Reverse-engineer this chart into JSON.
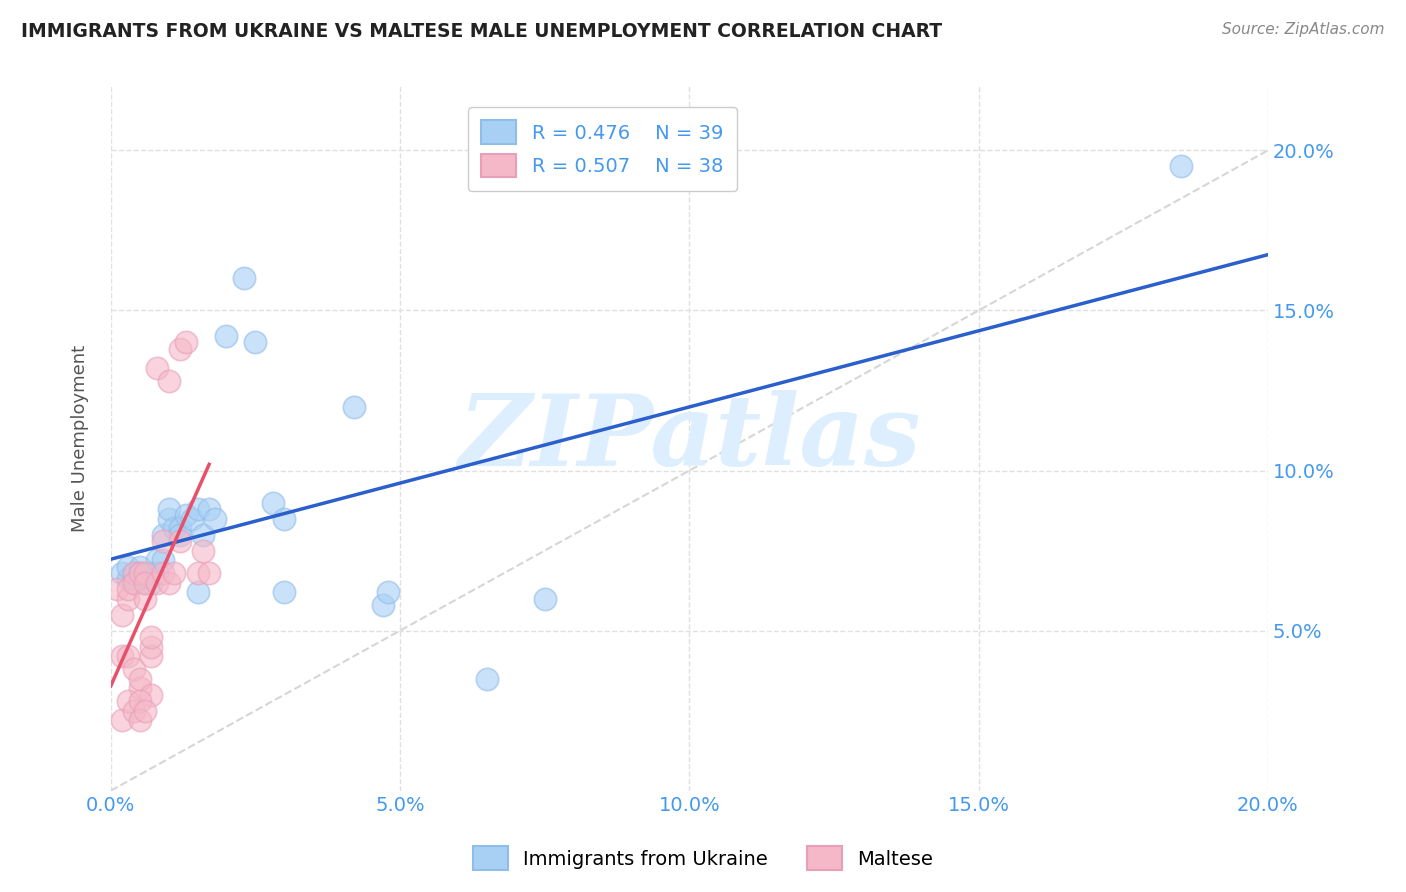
{
  "title": "IMMIGRANTS FROM UKRAINE VS MALTESE MALE UNEMPLOYMENT CORRELATION CHART",
  "source": "Source: ZipAtlas.com",
  "ylabel": "Male Unemployment",
  "xlabel_blue": "Immigrants from Ukraine",
  "xlabel_pink": "Maltese",
  "watermark": "ZIPatlas",
  "xlim": [
    0.0,
    0.2
  ],
  "ylim": [
    0.0,
    0.22
  ],
  "yticks": [
    0.05,
    0.1,
    0.15,
    0.2
  ],
  "xticks": [
    0.0,
    0.05,
    0.1,
    0.15,
    0.2
  ],
  "ytick_labels": [
    "5.0%",
    "10.0%",
    "15.0%",
    "20.0%"
  ],
  "xtick_labels": [
    "0.0%",
    "5.0%",
    "10.0%",
    "15.0%",
    "20.0%"
  ],
  "legend_blue_R": "R = 0.476",
  "legend_blue_N": "N = 39",
  "legend_pink_R": "R = 0.507",
  "legend_pink_N": "N = 38",
  "blue_scatter": [
    [
      0.002,
      0.068
    ],
    [
      0.003,
      0.066
    ],
    [
      0.003,
      0.07
    ],
    [
      0.004,
      0.068
    ],
    [
      0.004,
      0.065
    ],
    [
      0.005,
      0.07
    ],
    [
      0.005,
      0.068
    ],
    [
      0.006,
      0.067
    ],
    [
      0.006,
      0.065
    ],
    [
      0.007,
      0.068
    ],
    [
      0.007,
      0.065
    ],
    [
      0.008,
      0.072
    ],
    [
      0.008,
      0.068
    ],
    [
      0.009,
      0.08
    ],
    [
      0.009,
      0.072
    ],
    [
      0.01,
      0.085
    ],
    [
      0.01,
      0.088
    ],
    [
      0.011,
      0.082
    ],
    [
      0.012,
      0.082
    ],
    [
      0.012,
      0.08
    ],
    [
      0.013,
      0.086
    ],
    [
      0.014,
      0.085
    ],
    [
      0.015,
      0.088
    ],
    [
      0.015,
      0.062
    ],
    [
      0.016,
      0.08
    ],
    [
      0.017,
      0.088
    ],
    [
      0.018,
      0.085
    ],
    [
      0.02,
      0.142
    ],
    [
      0.023,
      0.16
    ],
    [
      0.025,
      0.14
    ],
    [
      0.028,
      0.09
    ],
    [
      0.03,
      0.085
    ],
    [
      0.03,
      0.062
    ],
    [
      0.042,
      0.12
    ],
    [
      0.047,
      0.058
    ],
    [
      0.048,
      0.062
    ],
    [
      0.065,
      0.035
    ],
    [
      0.075,
      0.06
    ],
    [
      0.185,
      0.195
    ]
  ],
  "pink_scatter": [
    [
      0.001,
      0.063
    ],
    [
      0.002,
      0.055
    ],
    [
      0.002,
      0.042
    ],
    [
      0.003,
      0.042
    ],
    [
      0.003,
      0.06
    ],
    [
      0.003,
      0.063
    ],
    [
      0.004,
      0.068
    ],
    [
      0.004,
      0.038
    ],
    [
      0.004,
      0.065
    ],
    [
      0.005,
      0.032
    ],
    [
      0.005,
      0.068
    ],
    [
      0.005,
      0.035
    ],
    [
      0.006,
      0.06
    ],
    [
      0.006,
      0.068
    ],
    [
      0.006,
      0.065
    ],
    [
      0.007,
      0.03
    ],
    [
      0.007,
      0.042
    ],
    [
      0.007,
      0.045
    ],
    [
      0.008,
      0.132
    ],
    [
      0.008,
      0.065
    ],
    [
      0.009,
      0.068
    ],
    [
      0.009,
      0.078
    ],
    [
      0.01,
      0.128
    ],
    [
      0.01,
      0.065
    ],
    [
      0.011,
      0.068
    ],
    [
      0.012,
      0.078
    ],
    [
      0.012,
      0.138
    ],
    [
      0.013,
      0.14
    ],
    [
      0.015,
      0.068
    ],
    [
      0.016,
      0.075
    ],
    [
      0.017,
      0.068
    ],
    [
      0.002,
      0.022
    ],
    [
      0.003,
      0.028
    ],
    [
      0.004,
      0.025
    ],
    [
      0.005,
      0.028
    ],
    [
      0.005,
      0.022
    ],
    [
      0.006,
      0.025
    ],
    [
      0.007,
      0.048
    ]
  ],
  "blue_color": "#a8d0f5",
  "pink_color": "#f5b8c8",
  "blue_line_color": "#2b5fcc",
  "pink_line_color": "#e8506a",
  "diagonal_color": "#cccccc",
  "background_color": "#ffffff",
  "grid_color": "#e0e0e0",
  "title_color": "#222222",
  "right_axis_color": "#4499ee",
  "watermark_color": "#ddeeff"
}
